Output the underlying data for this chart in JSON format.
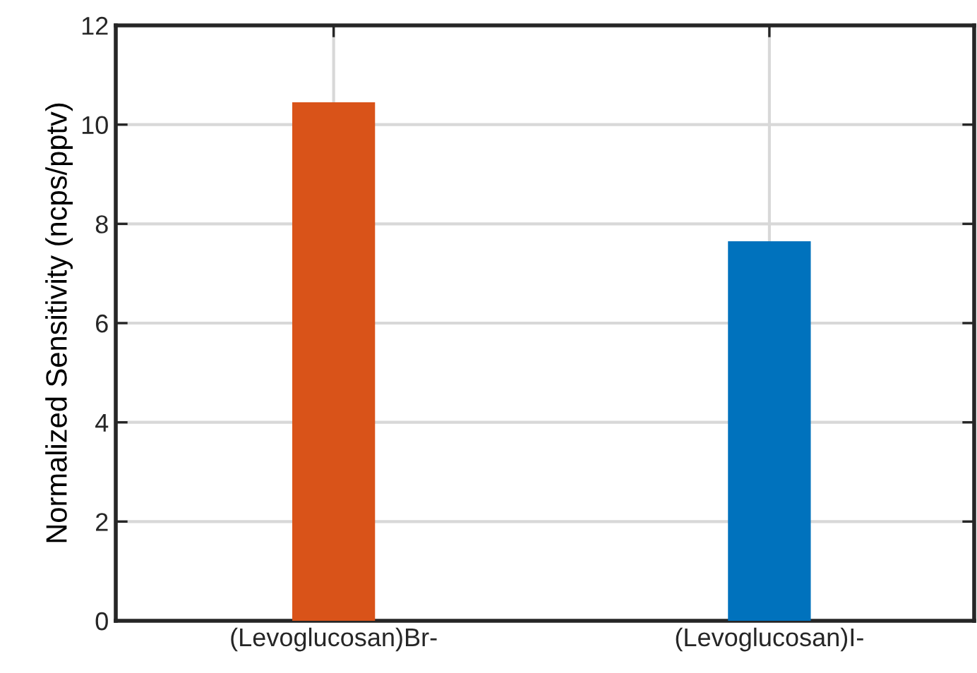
{
  "chart_data": {
    "type": "bar",
    "ylabel": "Normalized Sensitivity (ncps/pptv)",
    "categories": [
      "(Levoglucosan)Br-",
      "(Levoglucosan)I-"
    ],
    "values": [
      10.45,
      7.65
    ],
    "colors": [
      "#d95319",
      "#0072bd"
    ],
    "ylim": [
      0,
      12
    ],
    "yticks": [
      0,
      2,
      4,
      6,
      8,
      10,
      12
    ],
    "grid": true
  }
}
